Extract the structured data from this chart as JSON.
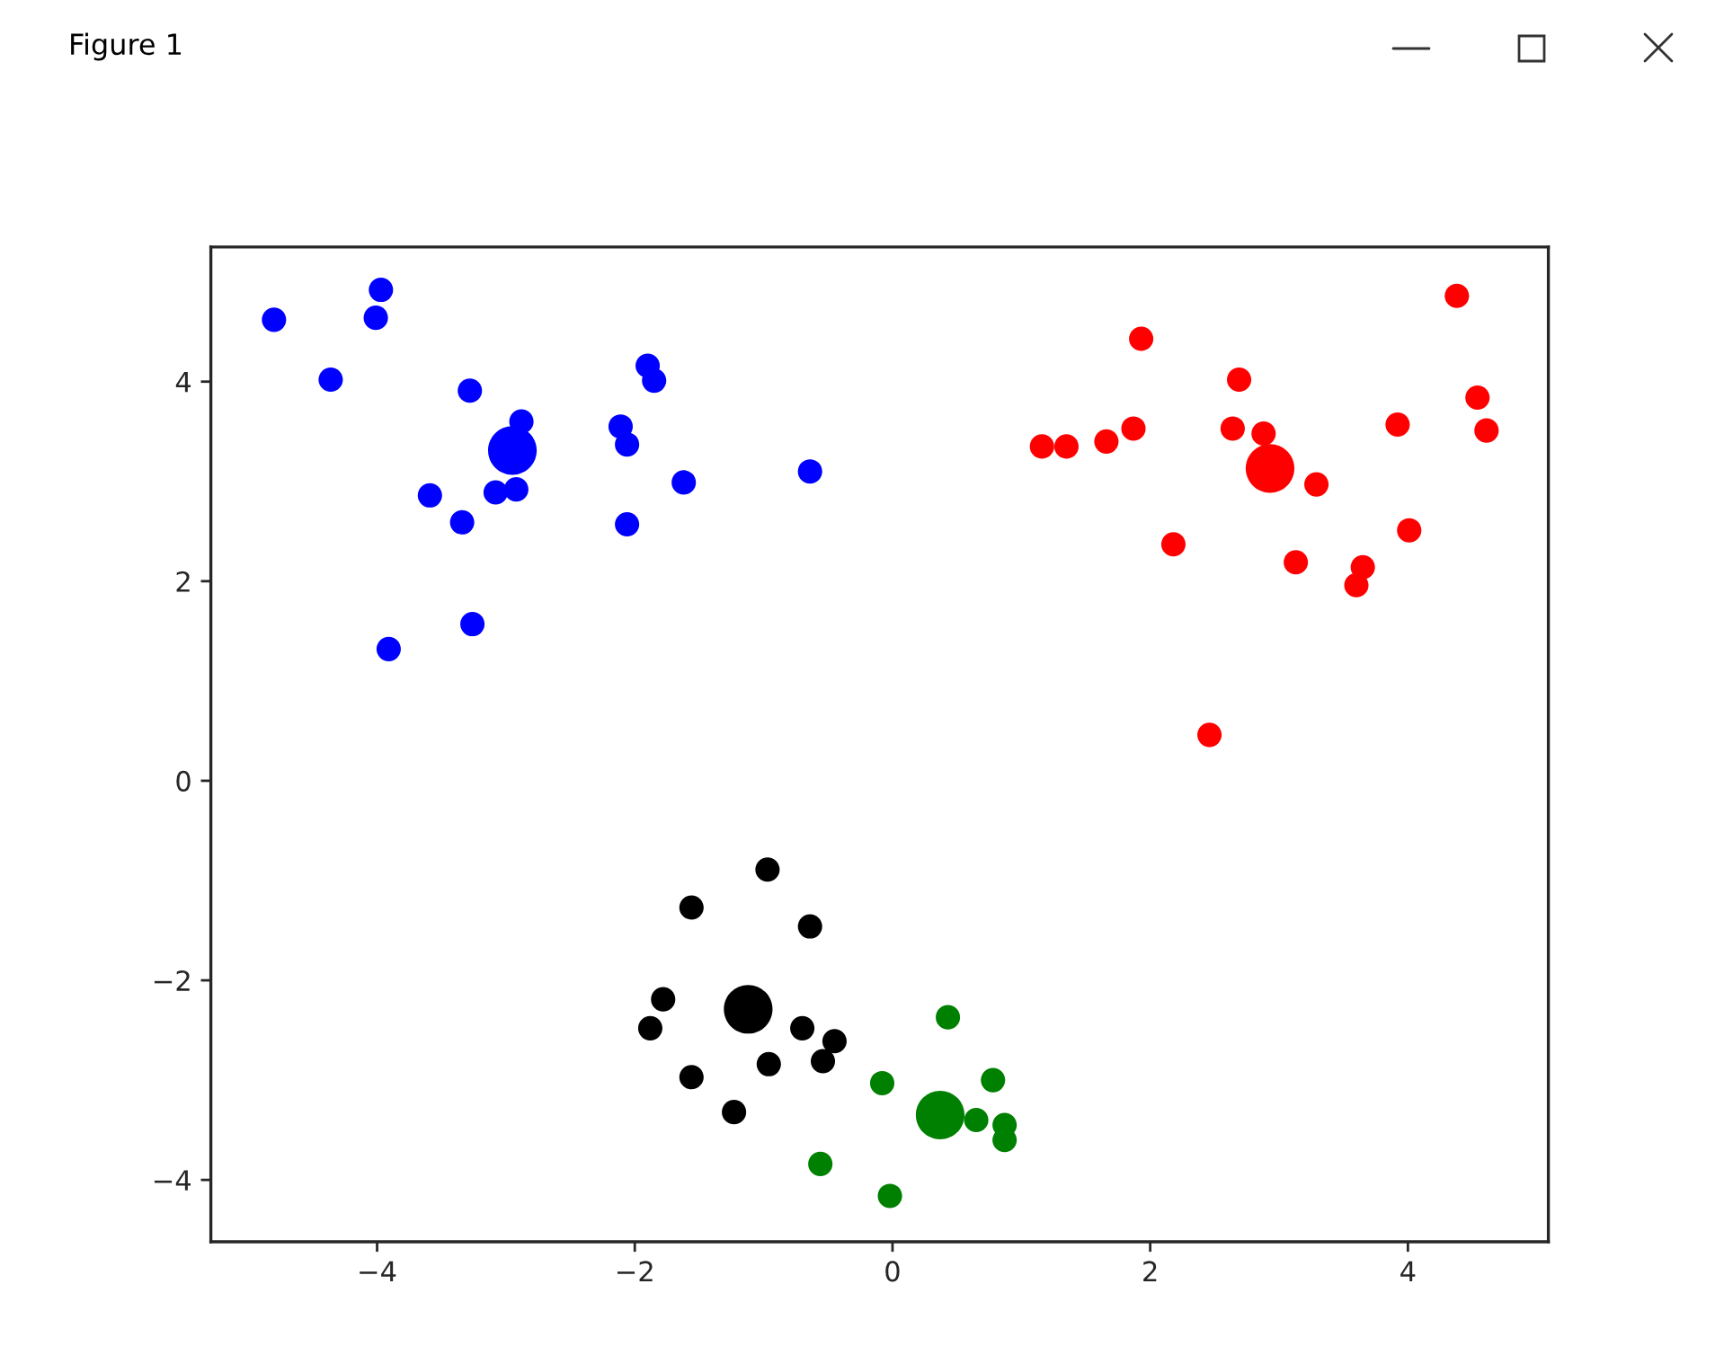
{
  "chart_data": {
    "type": "bubble",
    "marker": "circle",
    "annotations": [
      "Figure 1"
    ],
    "xlim": [
      -5.29,
      5.09
    ],
    "ylim": [
      -4.62,
      5.35
    ],
    "xticks": [
      {
        "value": -4,
        "label": "−4"
      },
      {
        "value": -2,
        "label": "−2"
      },
      0,
      2,
      4
    ],
    "yticks": [
      {
        "value": -4,
        "label": "−4"
      },
      {
        "value": -2,
        "label": "−2"
      },
      0,
      2,
      4
    ],
    "series": [
      {
        "color": "#0000ff",
        "x": [
          -4.8,
          -3.97,
          -4.01,
          -4.36,
          -3.28,
          -2.88,
          -1.9,
          -1.85,
          -2.11,
          -2.06,
          -0.64,
          -1.62,
          -3.08,
          -2.92,
          -3.59,
          -3.34,
          -2.06,
          -3.26,
          -3.91,
          -2.95
        ],
        "values": [
          4.62,
          4.92,
          4.64,
          4.02,
          3.91,
          3.6,
          4.16,
          4.01,
          3.55,
          3.37,
          3.1,
          2.99,
          2.89,
          2.92,
          2.86,
          2.59,
          2.57,
          1.57,
          1.32,
          3.31
        ],
        "sizes": [
          0.25,
          0.25,
          0.25,
          0.25,
          0.25,
          0.25,
          0.25,
          0.25,
          0.25,
          0.25,
          0.25,
          0.25,
          0.25,
          0.25,
          0.25,
          0.25,
          0.25,
          0.25,
          0.25,
          1
        ]
      },
      {
        "color": "#ff0000",
        "x": [
          4.38,
          1.93,
          2.69,
          4.54,
          4.61,
          3.92,
          2.64,
          2.88,
          1.87,
          1.66,
          1.35,
          1.16,
          3.29,
          2.18,
          4.01,
          3.13,
          3.65,
          3.6,
          2.46,
          2.93
        ],
        "values": [
          4.86,
          4.43,
          4.02,
          3.84,
          3.51,
          3.57,
          3.53,
          3.48,
          3.53,
          3.4,
          3.35,
          3.35,
          2.97,
          2.37,
          2.51,
          2.19,
          2.14,
          1.96,
          0.46,
          3.13
        ],
        "sizes": [
          0.25,
          0.25,
          0.25,
          0.25,
          0.25,
          0.25,
          0.25,
          0.25,
          0.25,
          0.25,
          0.25,
          0.25,
          0.25,
          0.25,
          0.25,
          0.25,
          0.25,
          0.25,
          0.25,
          1
        ]
      },
      {
        "color": "#000000",
        "x": [
          -0.97,
          -1.56,
          -0.64,
          -1.78,
          -1.88,
          -0.7,
          -0.45,
          -0.54,
          -0.96,
          -1.56,
          -1.23,
          -1.12
        ],
        "values": [
          -0.89,
          -1.27,
          -1.46,
          -2.19,
          -2.48,
          -2.48,
          -2.61,
          -2.81,
          -2.84,
          -2.97,
          -3.32,
          -2.29
        ],
        "sizes": [
          0.25,
          0.25,
          0.25,
          0.25,
          0.25,
          0.25,
          0.25,
          0.25,
          0.25,
          0.25,
          0.25,
          1
        ]
      },
      {
        "color": "#008000",
        "x": [
          0.43,
          -0.08,
          0.78,
          0.65,
          0.87,
          0.87,
          -0.56,
          -0.02,
          0.37
        ],
        "values": [
          -2.37,
          -3.03,
          -3.0,
          -3.4,
          -3.45,
          -3.6,
          -3.84,
          -4.16,
          -3.35
        ],
        "sizes": [
          0.25,
          0.25,
          0.25,
          0.25,
          0.25,
          0.25,
          0.25,
          0.25,
          1
        ]
      }
    ]
  }
}
